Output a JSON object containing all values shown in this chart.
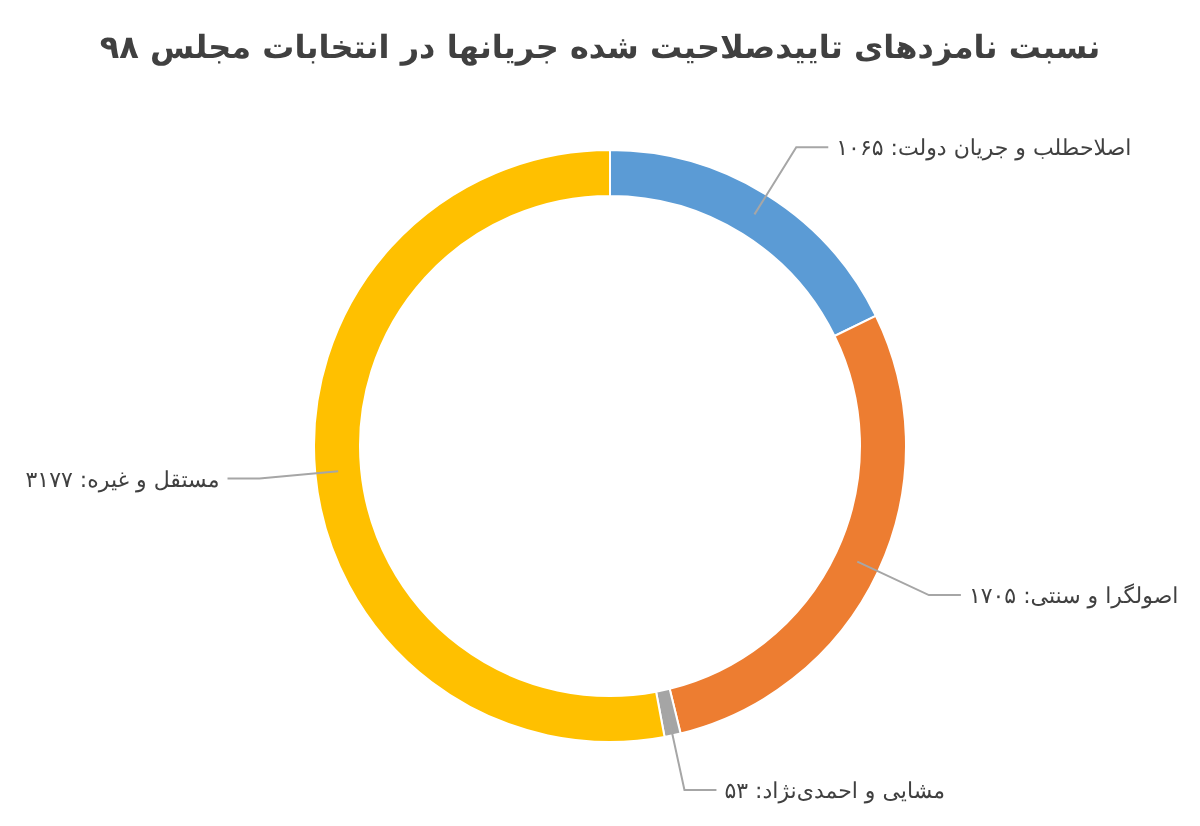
{
  "chart_data": {
    "type": "donut",
    "title": "نسبت نامزدهای تاییدصلاحیت شده جریانها در انتخابات مجلس ۹۸",
    "categories": [
      "اصلاحطلب و جریان دولت",
      "اصولگرا و سنتی",
      "مشایی و احمدی‌نژاد",
      "مستقل و غیره"
    ],
    "values": [
      1065,
      1705,
      53,
      3177
    ],
    "value_labels": [
      "۱۰۶۵",
      "۱۷۰۵",
      "۵۳",
      "۳۱۷۷"
    ],
    "colors": [
      "#5b9bd5",
      "#ed7d31",
      "#a5a5a5",
      "#ffc000"
    ]
  }
}
